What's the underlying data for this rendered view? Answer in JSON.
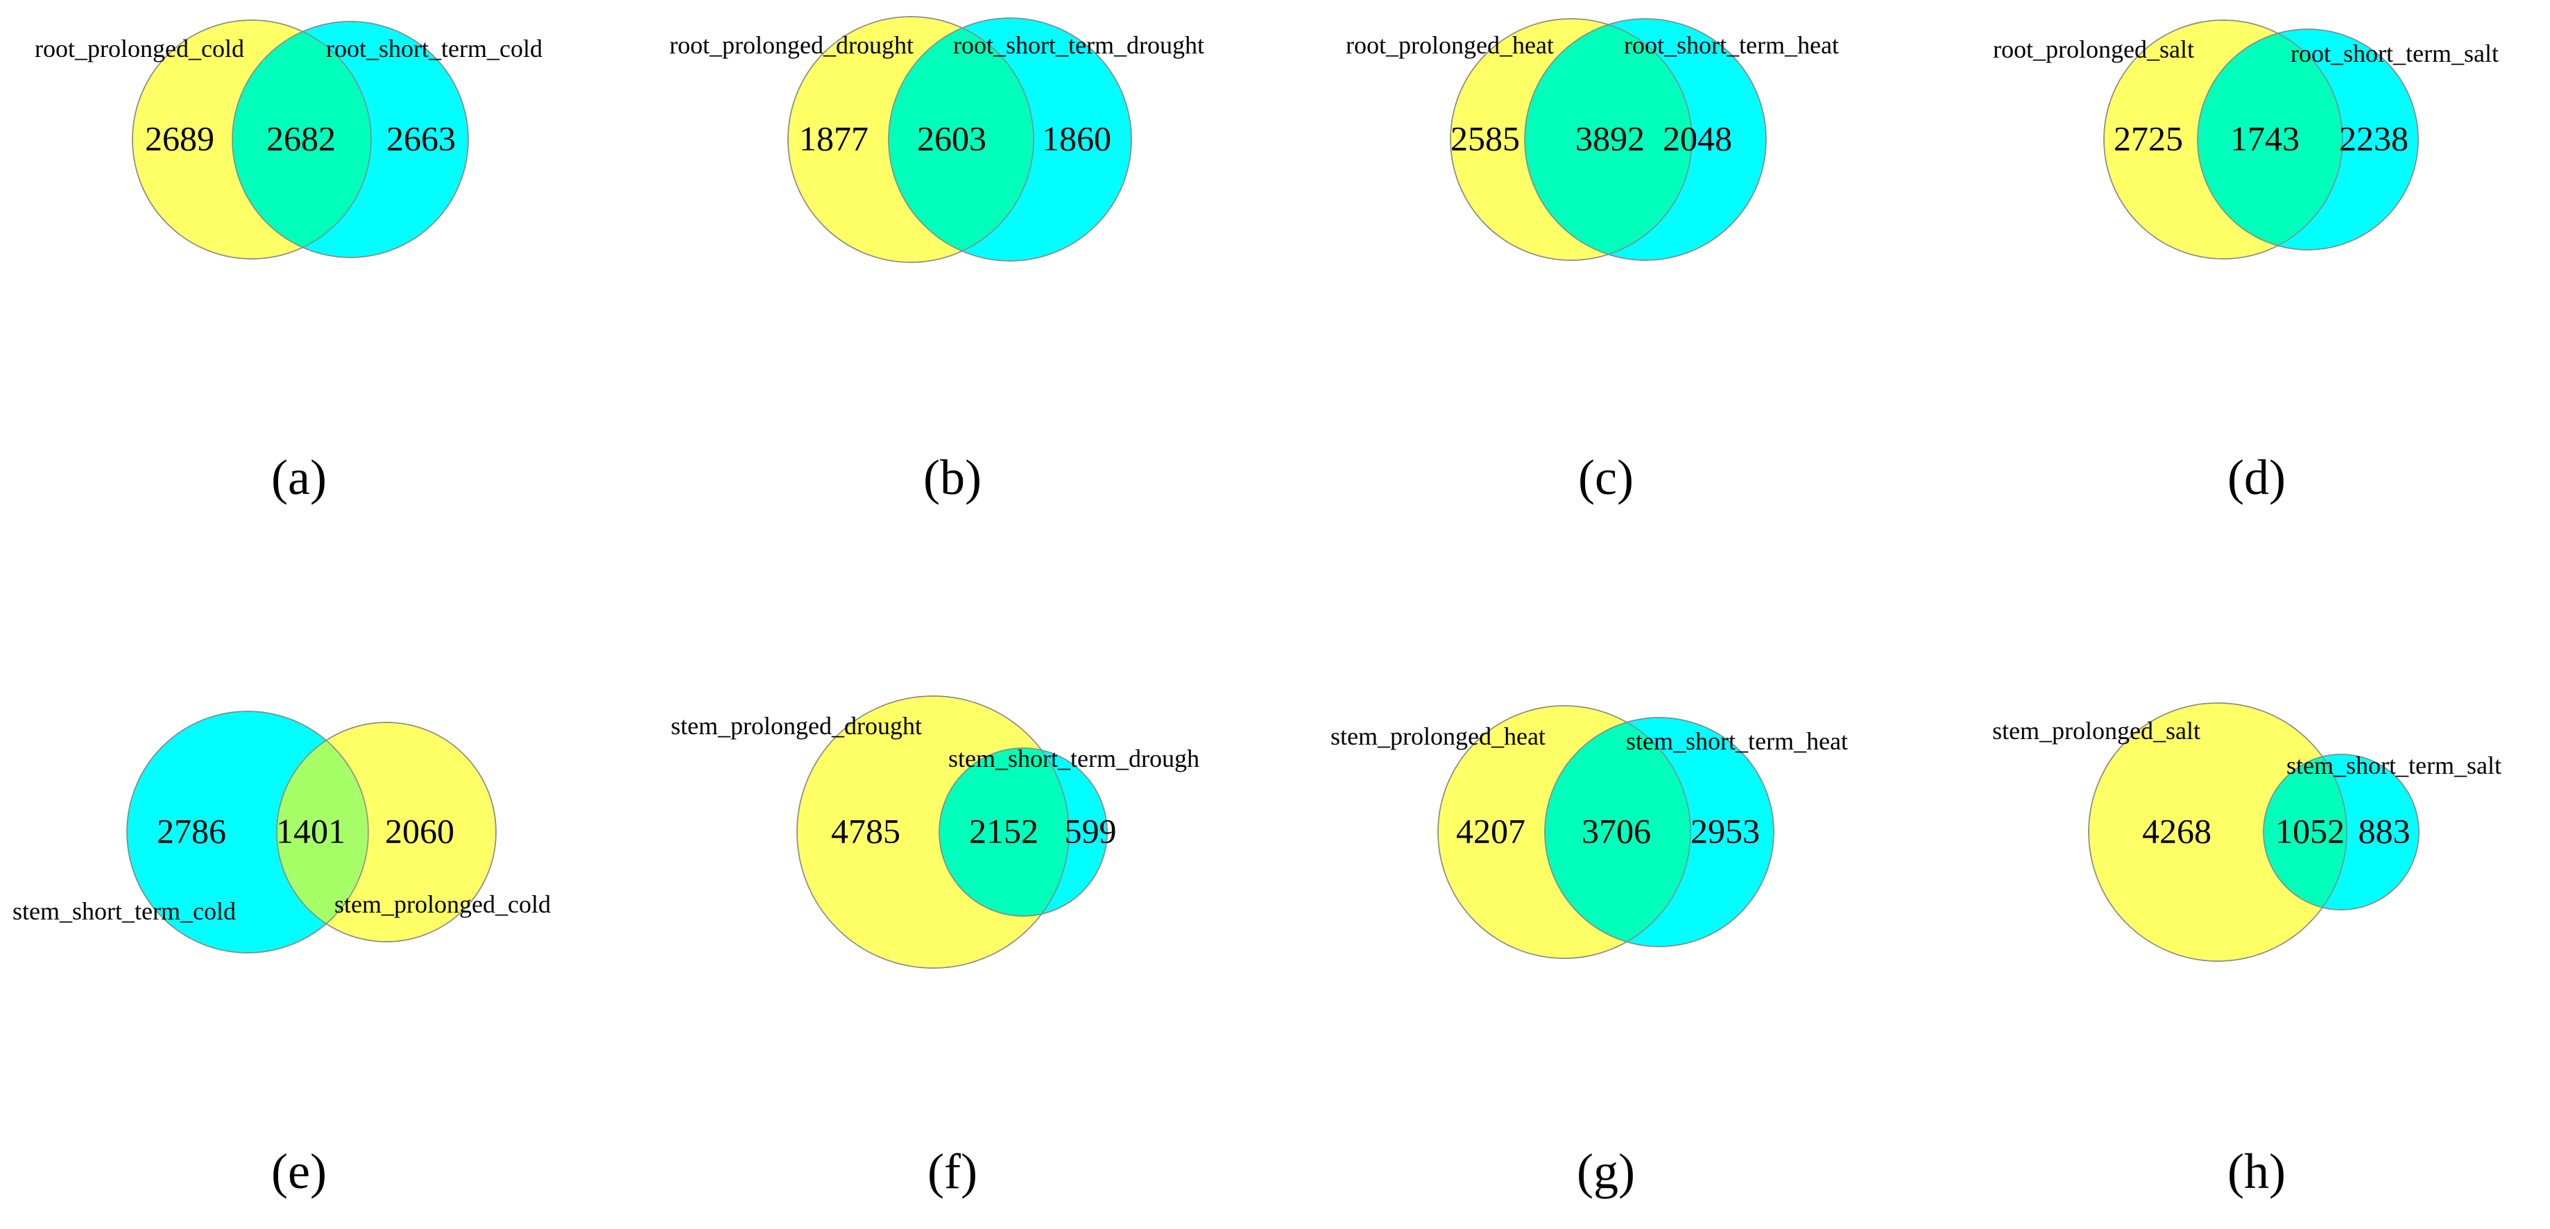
{
  "colors": {
    "yellow": "#ffff66",
    "cyan": "#00ffff",
    "teal_overlap": "#00ffbb",
    "green_overlap": "#a6ff66",
    "stroke": "#888888"
  },
  "panels": [
    {
      "caption": "(a)",
      "left_label": "root_prolonged_cold",
      "right_label": "root_short_term_cold",
      "left_only": "2689",
      "both": "2682",
      "right_only": "2663",
      "left_color": "yellow",
      "right_color": "cyan",
      "overlap_color": "teal_overlap"
    },
    {
      "caption": "(b)",
      "left_label": "root_prolonged_drought",
      "right_label": "root_short_term_drought",
      "left_only": "1877",
      "both": "2603",
      "right_only": "1860",
      "left_color": "yellow",
      "right_color": "cyan",
      "overlap_color": "teal_overlap"
    },
    {
      "caption": "(c)",
      "left_label": "root_prolonged_heat",
      "right_label": "root_short_term_heat",
      "left_only": "2585",
      "both": "3892",
      "right_only": "2048",
      "left_color": "yellow",
      "right_color": "cyan",
      "overlap_color": "teal_overlap"
    },
    {
      "caption": "(d)",
      "left_label": "root_prolonged_salt",
      "right_label": "root_short_term_salt",
      "left_only": "2725",
      "both": "1743",
      "right_only": "2238",
      "left_color": "yellow",
      "right_color": "cyan",
      "overlap_color": "teal_overlap"
    },
    {
      "caption": "(e)",
      "left_label": "stem_short_term_cold",
      "right_label": "stem_prolonged_cold",
      "left_only": "2786",
      "both": "1401",
      "right_only": "2060",
      "left_color": "cyan",
      "right_color": "yellow",
      "overlap_color": "green_overlap"
    },
    {
      "caption": "(f)",
      "left_label": "stem_prolonged_drought",
      "right_label": "stem_short_term_drough",
      "left_only": "4785",
      "both": "2152",
      "right_only": "599",
      "left_color": "yellow",
      "right_color": "cyan",
      "overlap_color": "teal_overlap"
    },
    {
      "caption": "(g)",
      "left_label": "stem_prolonged_heat",
      "right_label": "stem_short_term_heat",
      "left_only": "4207",
      "both": "3706",
      "right_only": "2953",
      "left_color": "yellow",
      "right_color": "cyan",
      "overlap_color": "teal_overlap"
    },
    {
      "caption": "(h)",
      "left_label": "stem_prolonged_salt",
      "right_label": "stem_short_term_salt",
      "left_only": "4268",
      "both": "1052",
      "right_only": "883",
      "left_color": "yellow",
      "right_color": "cyan",
      "overlap_color": "teal_overlap"
    }
  ]
}
